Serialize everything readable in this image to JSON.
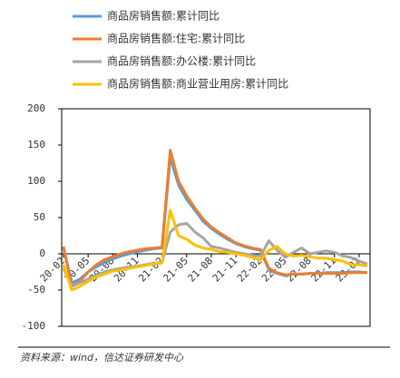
{
  "chart_data": {
    "type": "line",
    "categories": [
      "20-02",
      null,
      null,
      "20-05",
      null,
      null,
      "20-08",
      null,
      null,
      "20-11",
      null,
      null,
      "21-02",
      null,
      null,
      "21-05",
      null,
      null,
      "21-08",
      null,
      null,
      "21-11",
      null,
      null,
      "22-02",
      null,
      null,
      "22-05",
      null,
      null,
      "22-08",
      null,
      null,
      "22-11",
      null,
      null,
      "23-02",
      null
    ],
    "series": [
      {
        "name": "商品房销售额:累计同比",
        "color": "#5b9bd5",
        "values": [
          8,
          -40,
          -35,
          -25,
          -18,
          -12,
          -7,
          -3,
          0,
          3,
          5,
          7,
          8,
          133,
          95,
          75,
          60,
          45,
          35,
          27,
          20,
          14,
          10,
          7,
          5,
          -22,
          -27,
          -30,
          -28,
          -28,
          -27,
          -27,
          -26,
          -26,
          -26,
          -25,
          -25,
          -26
        ]
      },
      {
        "name": "商品房销售额:住宅:累计同比",
        "color": "#ed7d31",
        "values": [
          10,
          -45,
          -38,
          -25,
          -15,
          -8,
          -4,
          0,
          3,
          5,
          7,
          8,
          9,
          143,
          100,
          80,
          63,
          48,
          37,
          29,
          22,
          15,
          11,
          8,
          6,
          -20,
          -26,
          -29,
          -28,
          -28,
          -27,
          -27,
          -27,
          -27,
          -27,
          -26,
          -26,
          -26
        ]
      },
      {
        "name": "商品房销售额:办公楼:累计同比",
        "color": "#a5a5a5",
        "values": [
          -20,
          -45,
          -40,
          -35,
          -30,
          -25,
          -22,
          -20,
          -18,
          -17,
          -15,
          -13,
          -12,
          30,
          40,
          42,
          30,
          22,
          10,
          8,
          5,
          2,
          0,
          -2,
          -3,
          18,
          5,
          -5,
          2,
          8,
          0,
          2,
          4,
          2,
          -3,
          -5,
          -10,
          -14
        ]
      },
      {
        "name": "商品房销售额:商业营业用房:累计同比",
        "color": "#ffc000",
        "values": [
          -15,
          -50,
          -45,
          -38,
          -32,
          -28,
          -24,
          -22,
          -20,
          -18,
          -16,
          -14,
          -12,
          60,
          25,
          20,
          12,
          8,
          6,
          3,
          2,
          0,
          -2,
          -5,
          -8,
          5,
          10,
          0,
          -3,
          -2,
          -4,
          -6,
          -6,
          -8,
          -10,
          -15,
          -15,
          -17
        ]
      }
    ],
    "ylim": [
      -100,
      200
    ],
    "yticks": [
      -100,
      -50,
      0,
      50,
      100,
      150,
      200
    ],
    "source": "资料来源：wind，信达证券研发中心"
  }
}
